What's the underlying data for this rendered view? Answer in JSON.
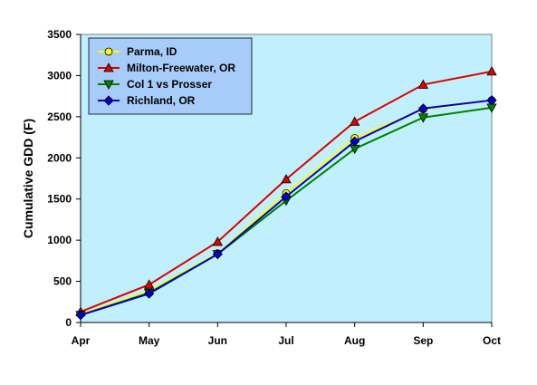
{
  "chart_data": {
    "type": "line",
    "title": "",
    "xlabel": "",
    "ylabel": "Cumulative GDD (F)",
    "categories": [
      "Apr",
      "May",
      "Jun",
      "Jul",
      "Aug",
      "Sep",
      "Oct"
    ],
    "ylim": [
      0,
      3500
    ],
    "yticks": [
      0,
      500,
      1000,
      1500,
      2000,
      2500,
      3000,
      3500
    ],
    "plot_background": "#C0F0FC",
    "legend": {
      "placement": "top-left",
      "background": "#A8CCFA"
    },
    "series": [
      {
        "name": "Parma, ID",
        "color": "#FFFF00",
        "marker": "circle",
        "marker_color": "#FFFF00",
        "values": [
          100,
          380,
          840,
          1570,
          2240,
          2590,
          2700
        ]
      },
      {
        "name": "Milton-Freewater, OR",
        "color": "#DD0000",
        "marker": "triangle-up",
        "marker_color": "#DD0000",
        "values": [
          130,
          460,
          980,
          1740,
          2440,
          2890,
          3050
        ]
      },
      {
        "name": "Col 1 vs Prosser",
        "color": "#008000",
        "marker": "triangle-down",
        "marker_color": "#008000",
        "values": [
          90,
          360,
          830,
          1480,
          2110,
          2490,
          2610
        ]
      },
      {
        "name": "Richland, OR",
        "color": "#0000CC",
        "marker": "diamond",
        "marker_color": "#0000CC",
        "values": [
          90,
          350,
          830,
          1530,
          2200,
          2600,
          2700
        ]
      }
    ]
  }
}
